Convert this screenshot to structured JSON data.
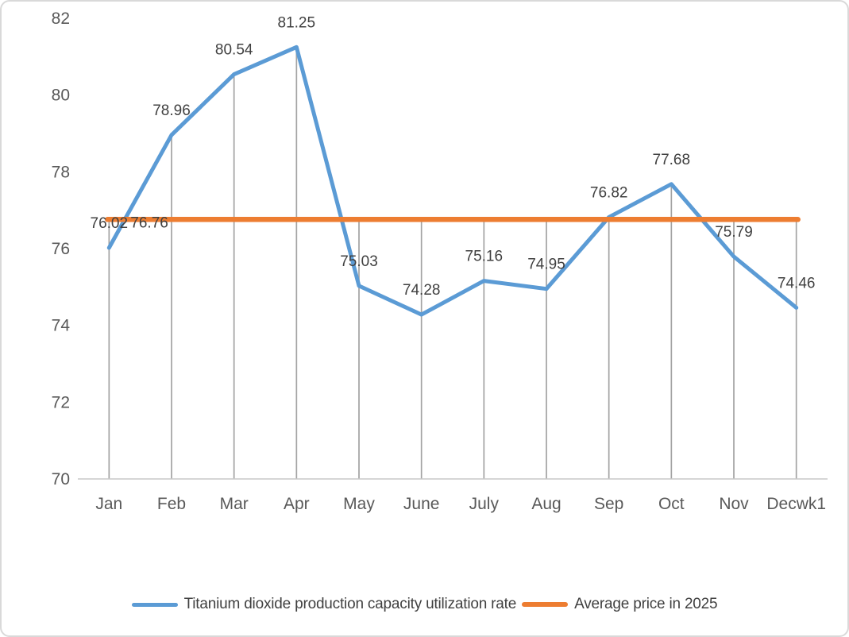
{
  "chart_data": {
    "type": "line",
    "title": "",
    "categories": [
      "Jan",
      "Feb",
      "Mar",
      "Apr",
      "May",
      "June",
      "July",
      "Aug",
      "Sep",
      "Oct",
      "Nov",
      "Decwk1"
    ],
    "series": [
      {
        "name": "Titanium dioxide production capacity utilization rate",
        "color": "#5B9BD5",
        "values": [
          76.02,
          78.96,
          80.54,
          81.25,
          75.03,
          74.28,
          75.16,
          74.95,
          76.82,
          77.68,
          75.79,
          74.46
        ],
        "data_labels": [
          "76.02",
          "78.96",
          "80.54",
          "81.25",
          "75.03",
          "74.28",
          "75.16",
          "74.95",
          "76.82",
          "77.68",
          "75.79",
          "74.46"
        ]
      },
      {
        "name": "Average price in 2025",
        "color": "#ED7D31",
        "style": "horizontal-constant-line",
        "value": 76.76,
        "data_label": "76.76"
      }
    ],
    "y_axis": {
      "min": 70,
      "max": 82,
      "tick_interval": 2,
      "tick_labels": [
        "82",
        "80",
        "78",
        "76",
        "74",
        "72",
        "70"
      ]
    },
    "x_axis": {
      "tick_labels": [
        "Jan",
        "Feb",
        "Mar",
        "Apr",
        "May",
        "June",
        "July",
        "Aug",
        "Sep",
        "Oct",
        "Nov",
        "Decwk1"
      ]
    },
    "gridlines": "vertical-drop-lines",
    "legend_position": "bottom"
  },
  "colors": {
    "series_line": "#5B9BD5",
    "average_line": "#ED7D31",
    "data_label_text": "#404040",
    "axis_label_text": "#595959",
    "drop_line": "#A3A3A3",
    "axis_line": "#C9C9C9",
    "frame_border": "#D9D9D9",
    "background": "#FFFFFF"
  }
}
